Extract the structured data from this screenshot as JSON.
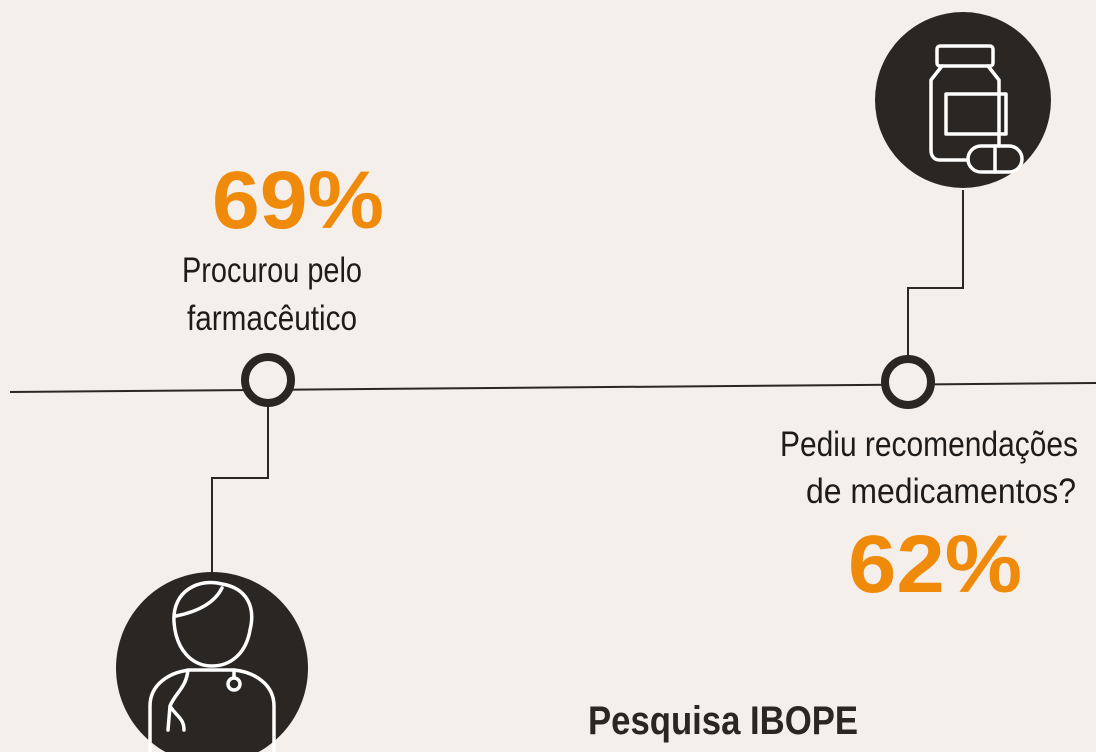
{
  "items": [
    {
      "stat": "69%",
      "label_lines": [
        "Procurou pelo",
        "farmacêutico"
      ]
    },
    {
      "stat": "62%",
      "label_lines": [
        "Pediu recomendações",
        "de medicamentos?"
      ]
    }
  ],
  "source": "Pesquisa IBOPE"
}
